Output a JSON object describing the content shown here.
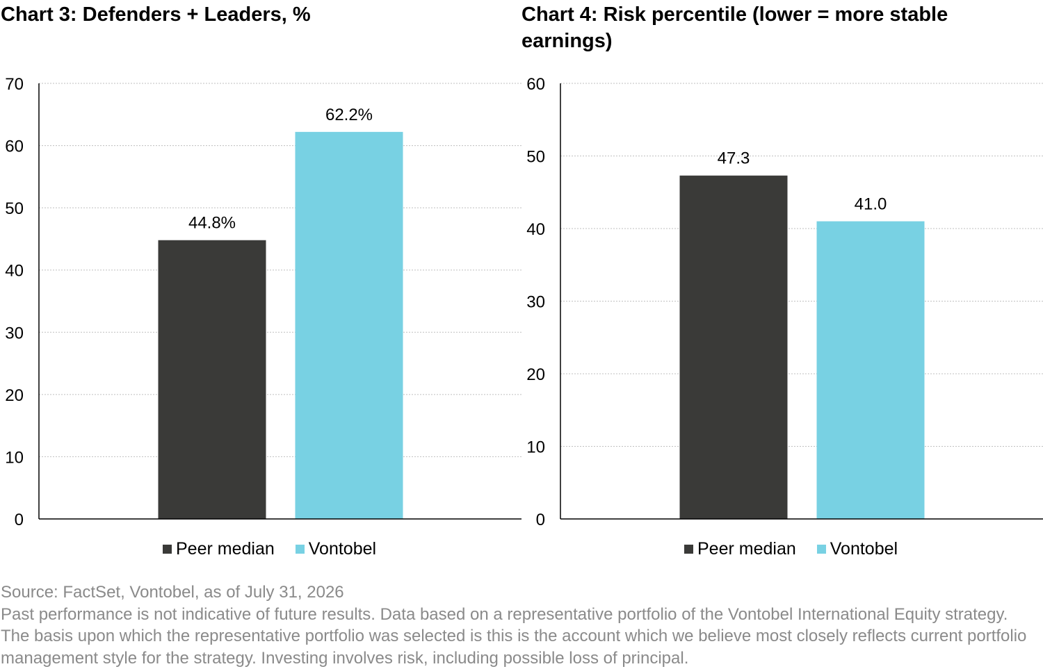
{
  "colors": {
    "peer": "#3a3a38",
    "vontobel": "#78d1e3",
    "grid": "#bfbfbf",
    "axis": "#000000",
    "footer_text": "#8a8a8a"
  },
  "chart_data": [
    {
      "type": "bar",
      "title": "Chart 3: Defenders + Leaders, %",
      "categories": [
        "Peer median",
        "Vontobel"
      ],
      "values": [
        44.8,
        62.2
      ],
      "data_labels": [
        "44.8%",
        "62.2%"
      ],
      "ylim": [
        0,
        70
      ],
      "yticks": [
        0,
        10,
        20,
        30,
        40,
        50,
        60,
        70
      ],
      "grid": true,
      "legend": {
        "position": "bottom",
        "entries": [
          "Peer median",
          "Vontobel"
        ]
      }
    },
    {
      "type": "bar",
      "title": "Chart 4: Risk percentile (lower = more stable earnings)",
      "categories": [
        "Peer median",
        "Vontobel"
      ],
      "values": [
        47.3,
        41.0
      ],
      "data_labels": [
        "47.3",
        "41.0"
      ],
      "ylim": [
        0,
        60
      ],
      "yticks": [
        0,
        10,
        20,
        30,
        40,
        50,
        60
      ],
      "grid": true,
      "legend": {
        "position": "bottom",
        "entries": [
          "Peer median",
          "Vontobel"
        ]
      }
    }
  ],
  "footer": {
    "source": "Source: FactSet, Vontobel, as of July 31, 2026",
    "disclaimer": "Past performance is not indicative of future results. Data based on a representative portfolio of the Vontobel International Equity strategy. The basis upon which the representative portfolio was selected is this is the account which we believe most closely reflects current portfolio management style for the strategy. Investing involves risk, including possible loss of principal."
  }
}
